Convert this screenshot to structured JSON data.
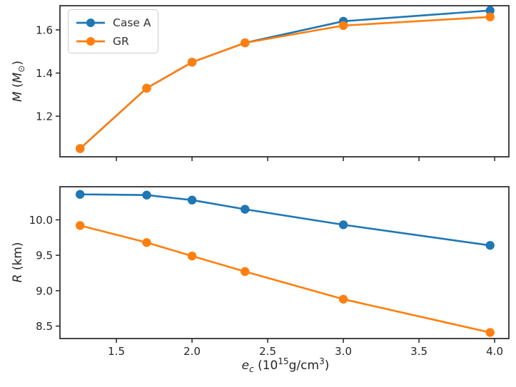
{
  "chart_data": {
    "type": "line",
    "x": [
      1.26,
      1.7,
      2.0,
      2.35,
      3.0,
      3.97
    ],
    "xlim": [
      1.127,
      4.094
    ],
    "xticks": [
      1.5,
      2.0,
      2.5,
      3.0,
      3.5,
      4.0
    ],
    "xlabel": "e_c (10^15 g/cm^3)",
    "grid": false,
    "legend_position": "upper left",
    "marker": "circle",
    "panels": [
      {
        "name": "mass-panel",
        "ylabel": "M (M_sun)",
        "ylim": [
          1.012,
          1.712
        ],
        "yticks": [
          1.2,
          1.4,
          1.6
        ],
        "series": [
          {
            "name": "Case A",
            "color": "#1f77b4",
            "values": [
              1.05,
              1.33,
              1.45,
              1.54,
              1.64,
              1.69
            ]
          },
          {
            "name": "GR",
            "color": "#ff7f0e",
            "values": [
              1.05,
              1.33,
              1.45,
              1.54,
              1.62,
              1.66
            ]
          }
        ]
      },
      {
        "name": "radius-panel",
        "ylabel": "R (km)",
        "ylim": [
          8.324,
          10.468
        ],
        "yticks": [
          8.5,
          9.0,
          9.5,
          10.0
        ],
        "series": [
          {
            "name": "Case A",
            "color": "#1f77b4",
            "values": [
              10.36,
              10.35,
              10.28,
              10.15,
              9.93,
              9.64
            ]
          },
          {
            "name": "GR",
            "color": "#ff7f0e",
            "values": [
              9.92,
              9.68,
              9.49,
              9.27,
              8.88,
              8.41
            ]
          }
        ]
      }
    ]
  },
  "labels": {
    "xlabel_parts": {
      "variable": "e",
      "subscript": "c",
      "open": " (10",
      "exponent": "15",
      "unit": "g/cm",
      "unit_exponent": "3",
      "close": ")"
    },
    "ylabel_top_parts": {
      "variable": "M",
      "open": " (",
      "symbol": "M",
      "subscript": "⊙",
      "close": ")"
    },
    "ylabel_bottom_parts": {
      "variable": "R",
      "rest": " (km)"
    }
  },
  "style": {
    "tick_color": "#262626",
    "spine_color": "#262626",
    "text_color": "#262626"
  }
}
